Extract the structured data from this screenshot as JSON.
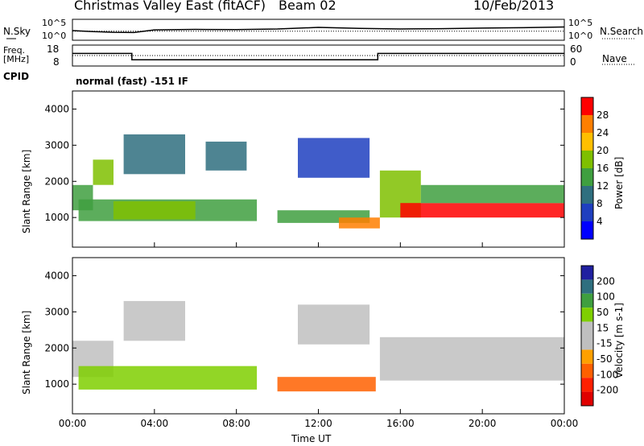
{
  "header": {
    "station": "Christmas Valley East (fitACF)",
    "beam": "Beam 02",
    "date": "10/Feb/2013"
  },
  "strip_labels": {
    "nsky": "N.Sky",
    "nsearch": "N.Search",
    "freq_line1": "Freq.",
    "freq_line2": "[MHz]",
    "nave": "Nave",
    "cpid": "CPID",
    "cpid_value": "normal (fast) -151 IF",
    "noise_ticks_left": [
      "10^5",
      "10^0"
    ],
    "noise_ticks_right": [
      "10^5",
      "10^0"
    ],
    "freq_ticks": [
      "18",
      "8"
    ],
    "nave_ticks": [
      "60",
      "0"
    ]
  },
  "colors": {
    "power_scale": [
      "#0000ff",
      "#1f3fbf",
      "#2f6f7f",
      "#3f9f3f",
      "#7fbf00",
      "#ffbf00",
      "#ff7f00",
      "#ff0000"
    ],
    "velocity_scale": [
      "#2020a0",
      "#2f6f7f",
      "#3f9f3f",
      "#7fcf00",
      "#bfbfbf",
      "#bfbfbf",
      "#ffa000",
      "#ff6000",
      "#ff2000",
      "#e00000"
    ],
    "ground_scatter": "#bfbfbf"
  },
  "chart_data": [
    {
      "type": "line",
      "name_ref": "noise",
      "x_range_hours": [
        0,
        24
      ],
      "yscale": "log",
      "series": [
        {
          "style": "solid",
          "x": [
            0,
            1,
            2,
            3,
            4,
            6,
            8,
            10,
            12,
            13,
            14,
            16,
            18,
            20,
            22,
            24
          ],
          "y": [
            200,
            120,
            80,
            70,
            300,
            400,
            350,
            500,
            1200,
            900,
            700,
            500,
            600,
            800,
            1000,
            1500
          ]
        },
        {
          "style": "dotted",
          "x": [
            0,
            24
          ],
          "y": [
            150,
            150
          ]
        }
      ]
    },
    {
      "type": "line",
      "name_ref": "freq_nave",
      "x_range_hours": [
        0,
        24
      ],
      "series": [
        {
          "style": "solid",
          "axis": "left",
          "x": [
            0,
            2.9,
            2.9,
            14.9,
            14.9,
            24
          ],
          "y": [
            14,
            14,
            11,
            11,
            14,
            14
          ]
        },
        {
          "style": "dotted",
          "axis": "right",
          "x": [
            0,
            24
          ],
          "y": [
            30,
            30
          ]
        }
      ]
    },
    {
      "type": "heatmap",
      "name_ref": "power",
      "xlabel": "",
      "ylabel": "Slant Range [km]",
      "colorbar_label": "Power [dB]",
      "x_range_hours": [
        0,
        24
      ],
      "ylim": [
        180,
        4500
      ],
      "yticks": [
        1000,
        2000,
        3000,
        4000
      ],
      "colorbar_ticks": [
        4,
        8,
        12,
        16,
        20,
        24,
        28
      ],
      "colorbar_range": [
        0,
        32
      ],
      "regions": [
        {
          "t0": 0.0,
          "t1": 1.0,
          "r0": 1200,
          "r1": 1900,
          "db": 14
        },
        {
          "t0": 1.0,
          "t1": 2.0,
          "r0": 1900,
          "r1": 2600,
          "db": 18
        },
        {
          "t0": 0.3,
          "t1": 9.0,
          "r0": 900,
          "r1": 1500,
          "db": 12
        },
        {
          "t0": 2.0,
          "t1": 6.0,
          "r0": 950,
          "r1": 1450,
          "db": 17
        },
        {
          "t0": 10.0,
          "t1": 14.5,
          "r0": 850,
          "r1": 1200,
          "db": 15
        },
        {
          "t0": 13.0,
          "t1": 15.0,
          "r0": 700,
          "r1": 1000,
          "db": 27
        },
        {
          "t0": 15.0,
          "t1": 17.0,
          "r0": 1000,
          "r1": 2300,
          "db": 18
        },
        {
          "t0": 16.0,
          "t1": 24.0,
          "r0": 1000,
          "r1": 1400,
          "db": 28
        },
        {
          "t0": 17.0,
          "t1": 24.0,
          "r0": 1400,
          "r1": 1900,
          "db": 12
        },
        {
          "t0": 11.0,
          "t1": 14.5,
          "r0": 2100,
          "r1": 3200,
          "db": 6
        },
        {
          "t0": 2.5,
          "t1": 5.5,
          "r0": 2200,
          "r1": 3300,
          "db": 9
        },
        {
          "t0": 6.5,
          "t1": 8.5,
          "r0": 2300,
          "r1": 3100,
          "db": 8
        }
      ]
    },
    {
      "type": "heatmap",
      "name_ref": "velocity",
      "xlabel": "Time UT",
      "ylabel": "Slant Range [km]",
      "colorbar_label": "Velocity [m s-1]",
      "x_range_hours": [
        0,
        24
      ],
      "xticks": [
        "00:00",
        "04:00",
        "08:00",
        "12:00",
        "16:00",
        "20:00",
        "00:00"
      ],
      "ylim": [
        180,
        4500
      ],
      "yticks": [
        1000,
        2000,
        3000,
        4000
      ],
      "colorbar_ticks": [
        200,
        100,
        50,
        15,
        -15,
        -50,
        -100,
        -200
      ],
      "regions": [
        {
          "t0": 0.0,
          "t1": 2.0,
          "r0": 1200,
          "r1": 2200,
          "v": 0,
          "ground": true
        },
        {
          "t0": 0.3,
          "t1": 9.0,
          "r0": 850,
          "r1": 1500,
          "v": 30
        },
        {
          "t0": 10.0,
          "t1": 14.8,
          "r0": 800,
          "r1": 1200,
          "v": -60
        },
        {
          "t0": 15.0,
          "t1": 24.0,
          "r0": 1100,
          "r1": 2300,
          "v": 0,
          "ground": true
        },
        {
          "t0": 11.0,
          "t1": 14.5,
          "r0": 2100,
          "r1": 3200,
          "v": 0,
          "ground": true
        },
        {
          "t0": 2.5,
          "t1": 5.5,
          "r0": 2200,
          "r1": 3300,
          "v": 0,
          "ground": true
        }
      ]
    }
  ]
}
